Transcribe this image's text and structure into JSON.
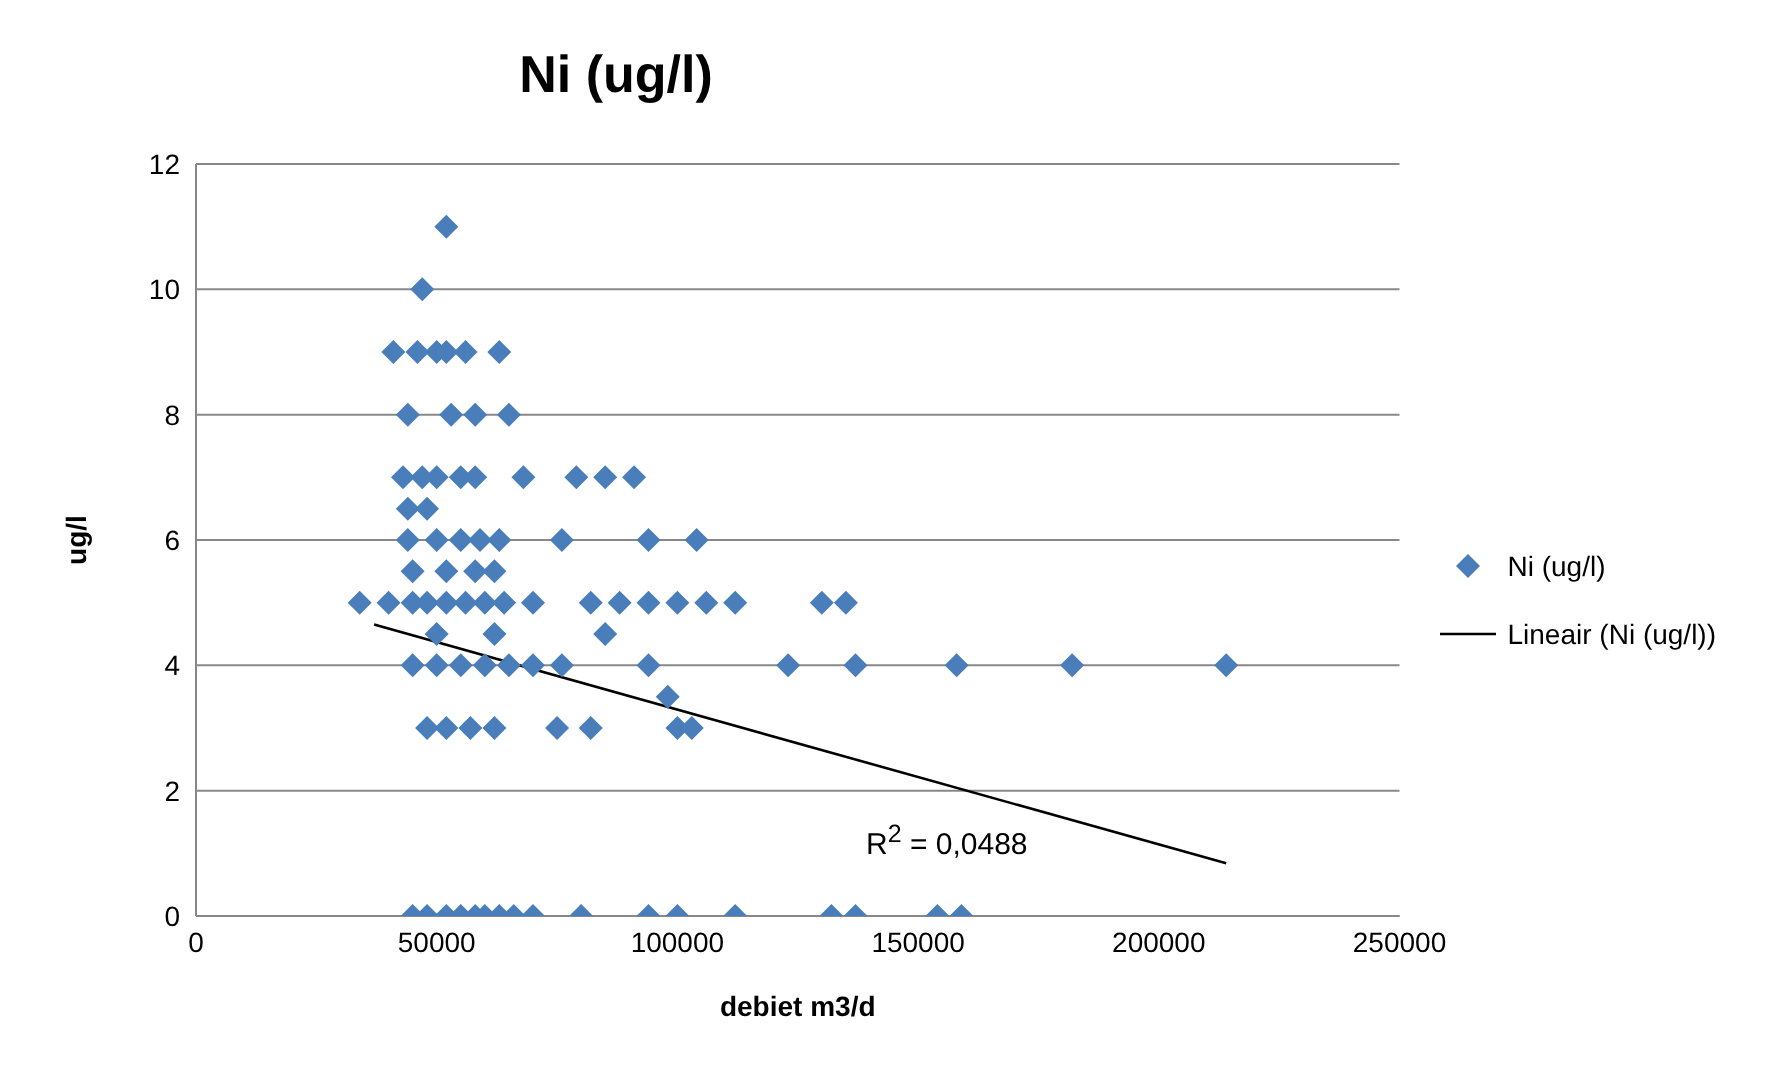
{
  "chart_data": {
    "type": "scatter",
    "title": "Ni (ug/l)",
    "xlabel": "debiet m3/d",
    "ylabel": "ug/l",
    "xlim": [
      0,
      250000
    ],
    "xticks": [
      0,
      50000,
      100000,
      150000,
      200000,
      250000
    ],
    "ylim": [
      0,
      12
    ],
    "yticks": [
      0,
      2,
      4,
      6,
      8,
      10,
      12
    ],
    "grid": "y",
    "legend": "right",
    "marker": "diamond",
    "annotations": [
      "R$^{2}$ = 0,0488"
    ],
    "series": [
      {
        "name": "Ni (ug/l)",
        "color": "#4a7ebb",
        "x": [
          52000,
          47000,
          41000,
          46000,
          50000,
          52000,
          56000,
          63000,
          44000,
          53000,
          58000,
          65000,
          43000,
          47000,
          50000,
          55000,
          58000,
          68000,
          79000,
          85000,
          91000,
          44000,
          48000,
          44000,
          50000,
          55000,
          59000,
          63000,
          76000,
          94000,
          104000,
          45000,
          52000,
          58000,
          62000,
          34000,
          40000,
          45000,
          48000,
          52000,
          56000,
          60000,
          64000,
          70000,
          82000,
          88000,
          94000,
          100000,
          106000,
          112000,
          130000,
          135000,
          50000,
          62000,
          85000,
          45000,
          50000,
          55000,
          60000,
          65000,
          70000,
          76000,
          94000,
          123000,
          137000,
          158000,
          182000,
          214000,
          98000,
          48000,
          52000,
          57000,
          62000,
          75000,
          82000,
          100000,
          103000,
          45000,
          48000,
          52000,
          55000,
          58000,
          60000,
          63000,
          66000,
          70000,
          80000,
          94000,
          100000,
          112000,
          132000,
          137000,
          154000,
          159000
        ],
        "values": [
          11,
          10,
          9,
          9,
          9,
          9,
          9,
          9,
          8,
          8,
          8,
          8,
          7,
          7,
          7,
          7,
          7,
          7,
          7,
          7,
          7,
          6.5,
          6.5,
          6,
          6,
          6,
          6,
          6,
          6,
          6,
          6,
          5.5,
          5.5,
          5.5,
          5.5,
          5,
          5,
          5,
          5,
          5,
          5,
          5,
          5,
          5,
          5,
          5,
          5,
          5,
          5,
          5,
          5,
          5,
          4.5,
          4.5,
          4.5,
          4,
          4,
          4,
          4,
          4,
          4,
          4,
          4,
          4,
          4,
          4,
          4,
          4,
          3.5,
          3,
          3,
          3,
          3,
          3,
          3,
          3,
          3,
          0,
          0,
          0,
          0,
          0,
          0,
          0,
          0,
          0,
          0,
          0,
          0,
          0,
          0,
          0,
          0,
          0
        ]
      },
      {
        "name": "Lineair (Ni (ug/l))",
        "type": "line",
        "color": "#000000",
        "marker": "none",
        "x": [
          37000,
          214000
        ],
        "values": [
          4.65,
          0.84
        ]
      }
    ]
  }
}
